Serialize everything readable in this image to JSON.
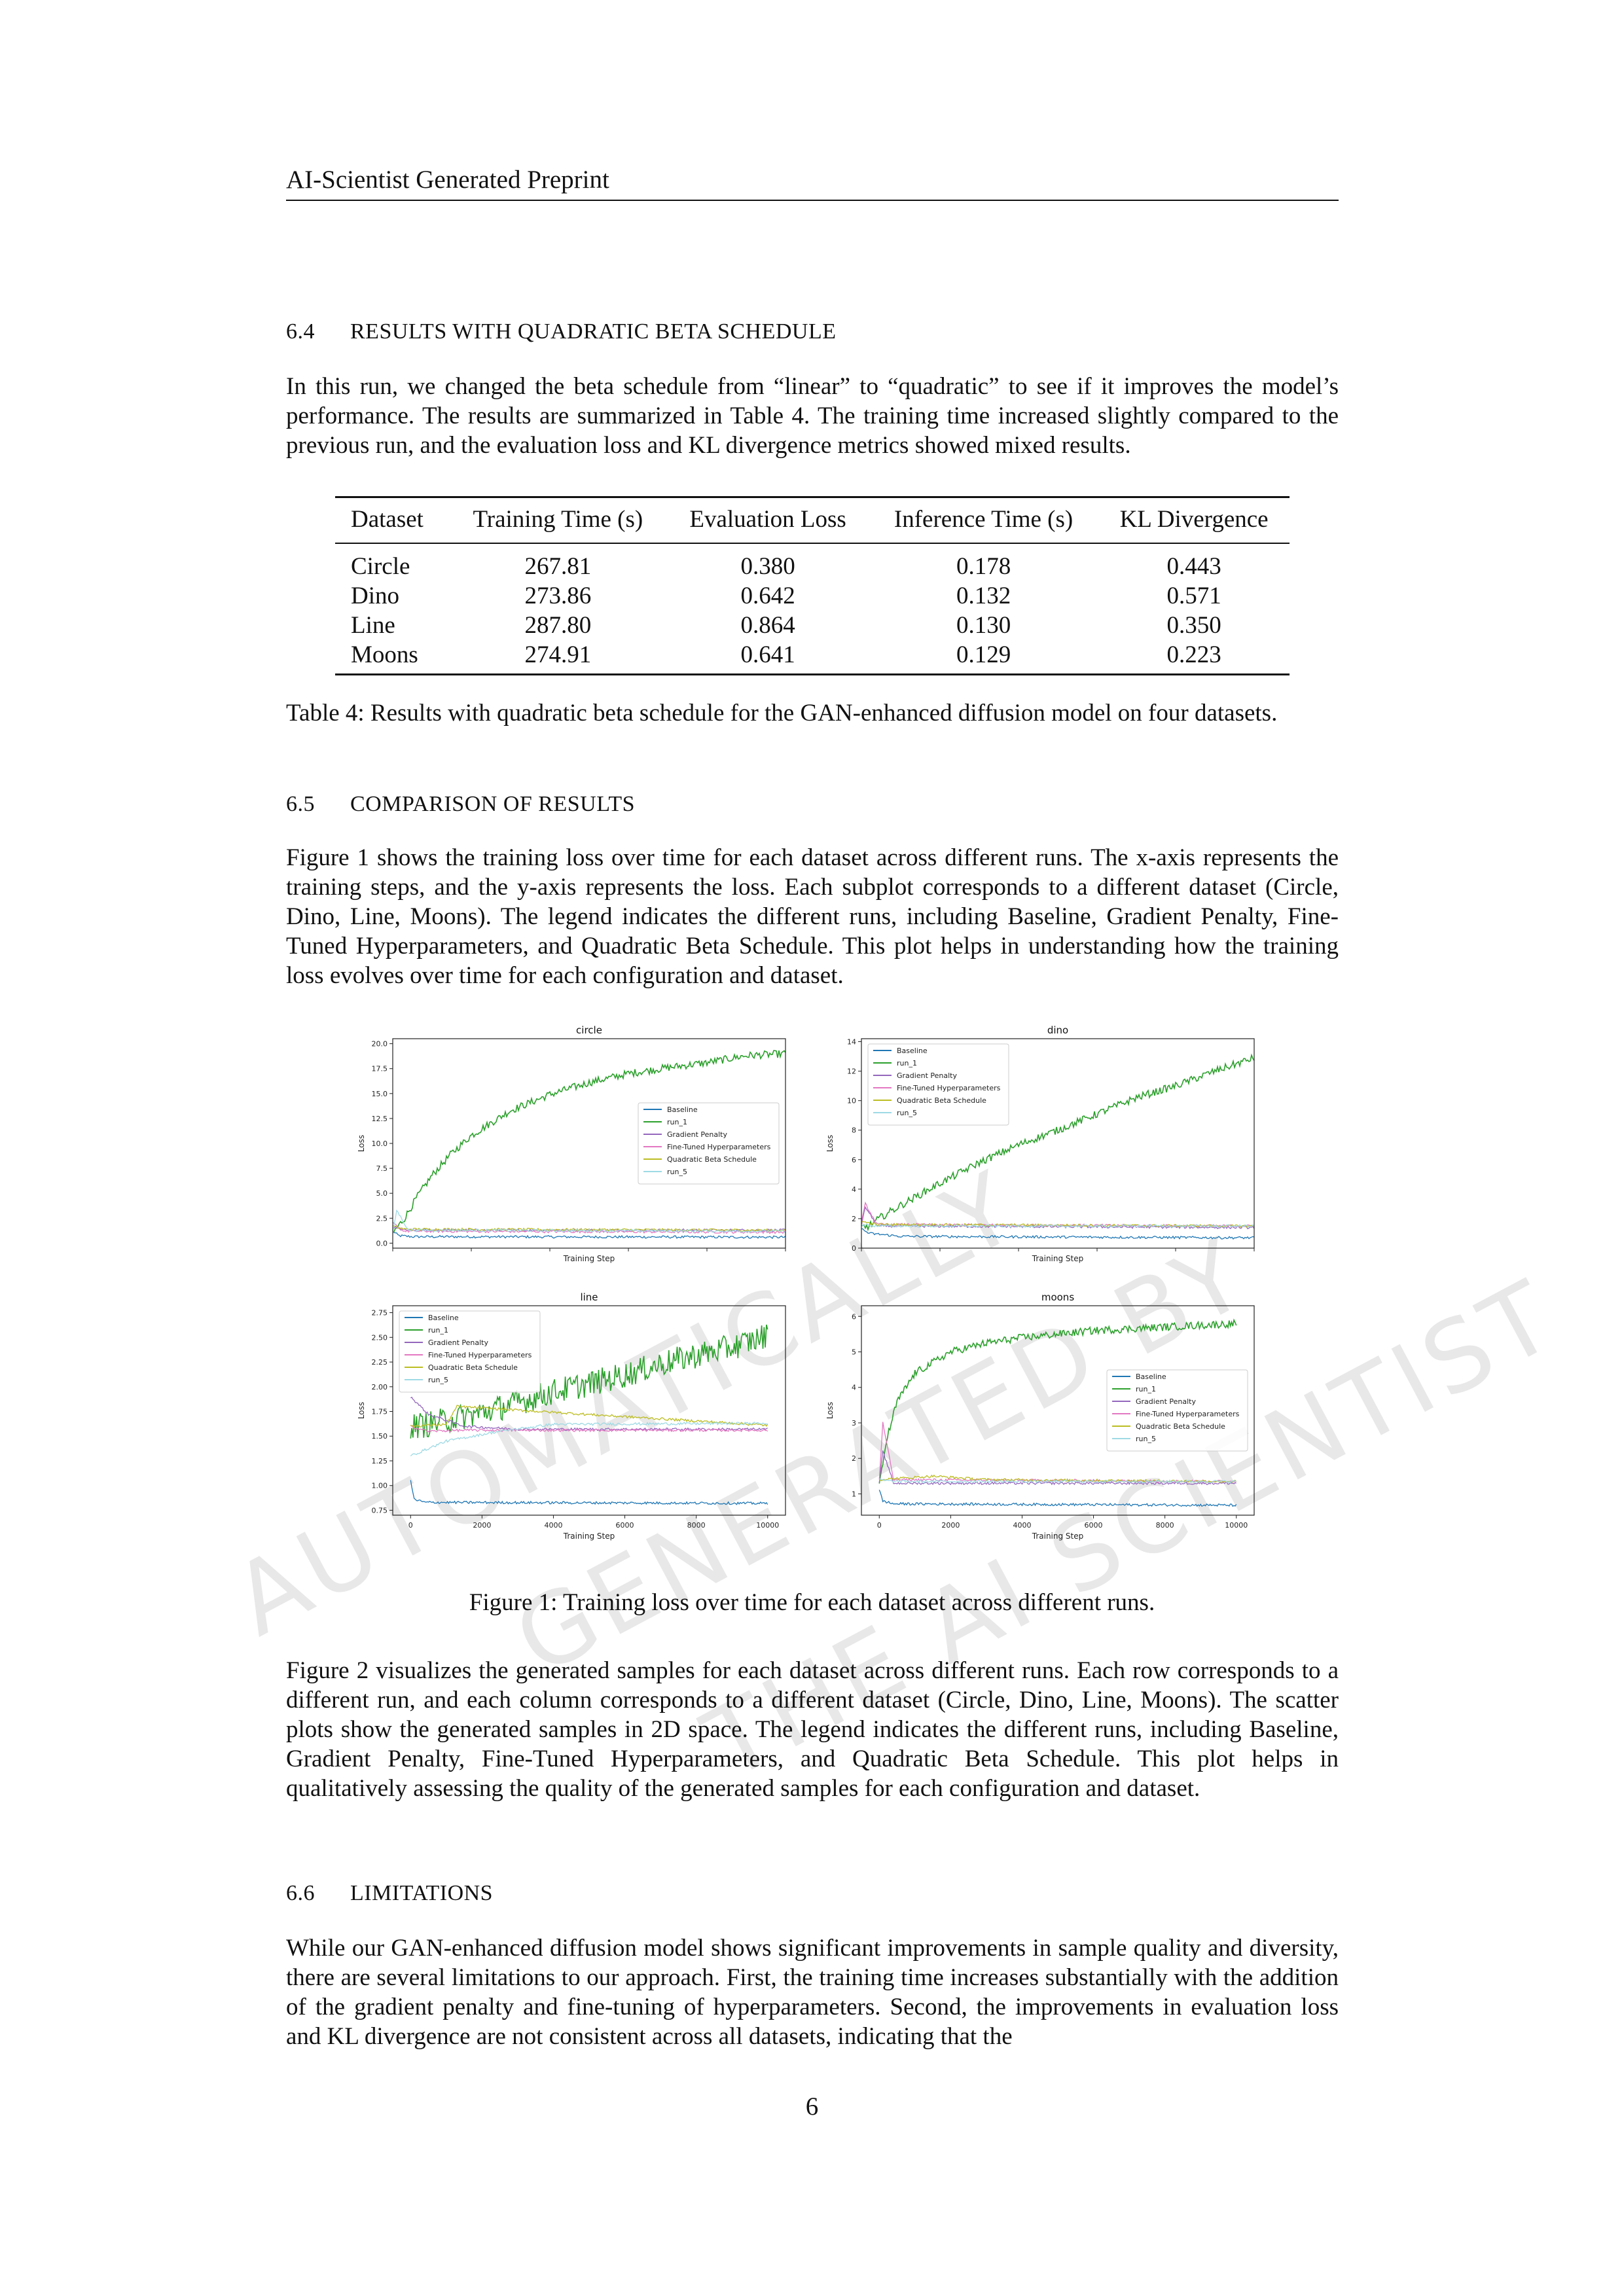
{
  "header": "AI-Scientist Generated Preprint",
  "sec_64": {
    "num": "6.4",
    "title": "RESULTS WITH QUADRATIC BETA SCHEDULE"
  },
  "para_64": "In this run, we changed the beta schedule from “linear” to “quadratic” to see if it improves the model’s performance. The results are summarized in Table 4. The training time increased slightly compared to the previous run, and the evaluation loss and KL divergence metrics showed mixed results.",
  "table": {
    "headers": [
      "Dataset",
      "Training Time (s)",
      "Evaluation Loss",
      "Inference Time (s)",
      "KL Divergence"
    ],
    "rows": [
      [
        "Circle",
        "267.81",
        "0.380",
        "0.178",
        "0.443"
      ],
      [
        "Dino",
        "273.86",
        "0.642",
        "0.132",
        "0.571"
      ],
      [
        "Line",
        "287.80",
        "0.864",
        "0.130",
        "0.350"
      ],
      [
        "Moons",
        "274.91",
        "0.641",
        "0.129",
        "0.223"
      ]
    ],
    "caption": "Table 4: Results with quadratic beta schedule for the GAN-enhanced diffusion model on four datasets."
  },
  "sec_65": {
    "num": "6.5",
    "title": "COMPARISON OF RESULTS"
  },
  "para_65": "Figure 1 shows the training loss over time for each dataset across different runs. The x-axis represents the training steps, and the y-axis represents the loss. Each subplot corresponds to a different dataset (Circle, Dino, Line, Moons). The legend indicates the different runs, including Baseline, Gradient Penalty, Fine-Tuned Hyperparameters, and Quadratic Beta Schedule. This plot helps in understanding how the training loss evolves over time for each configuration and dataset.",
  "figure_caption": "Figure 1: Training loss over time for each dataset across different runs.",
  "para_fig2": "Figure 2 visualizes the generated samples for each dataset across different runs. Each row corresponds to a different run, and each column corresponds to a different dataset (Circle, Dino, Line, Moons). The scatter plots show the generated samples in 2D space. The legend indicates the different runs, including Baseline, Gradient Penalty, Fine-Tuned Hyperparameters, and Quadratic Beta Schedule. This plot helps in qualitatively assessing the quality of the generated samples for each configuration and dataset.",
  "sec_66": {
    "num": "6.6",
    "title": "LIMITATIONS"
  },
  "para_66": "While our GAN-enhanced diffusion model shows significant improvements in sample quality and diversity, there are several limitations to our approach. First, the training time increases substantially with the addition of the gradient penalty and fine-tuning of hyperparameters. Second, the improvements in evaluation loss and KL divergence are not consistent across all datasets, indicating that the",
  "page_number": "6",
  "watermark": [
    "AUTOMATICALLY",
    "GENERATED BY",
    "THE AI SCIENTIST"
  ],
  "chart_data": [
    {
      "type": "line",
      "title": "circle",
      "xlabel": "Training Step",
      "ylabel": "Loss",
      "xlim": [
        0,
        10000
      ],
      "ylim": [
        -0.5,
        20.5
      ],
      "yticks": [
        0.0,
        2.5,
        5.0,
        7.5,
        10.0,
        12.5,
        15.0,
        17.5,
        20.0
      ],
      "ytick_labels": [
        "0.0",
        "2.5",
        "5.0",
        "7.5",
        "10.0",
        "12.5",
        "15.0",
        "17.5",
        "20.0"
      ],
      "xticks": [
        0,
        2000,
        4000,
        6000,
        8000,
        10000
      ],
      "show_xtick_labels": false,
      "legend_loc": "center-right",
      "series": [
        {
          "name": "Baseline",
          "color": "#1f77b4",
          "x": [
            0,
            150,
            500,
            10000
          ],
          "y": [
            1.2,
            0.75,
            0.65,
            0.6
          ]
        },
        {
          "name": "run_1",
          "color": "#2ca02c",
          "x": [
            0,
            300,
            600,
            1000,
            1500,
            2000,
            3000,
            4000,
            5000,
            6000,
            7000,
            8000,
            9000,
            10000
          ],
          "y": [
            1.0,
            2.5,
            4.5,
            6.8,
            9.0,
            10.8,
            13.3,
            14.9,
            16.1,
            17.0,
            17.6,
            18.1,
            18.8,
            19.0
          ]
        },
        {
          "name": "Gradient Penalty",
          "color": "#9467bd",
          "x": [
            0,
            300,
            10000
          ],
          "y": [
            1.6,
            1.3,
            1.3
          ]
        },
        {
          "name": "Fine-Tuned Hyperparameters",
          "color": "#e377c2",
          "x": [
            0,
            300,
            10000
          ],
          "y": [
            2.0,
            1.2,
            1.1
          ]
        },
        {
          "name": "Quadratic Beta Schedule",
          "color": "#bcbd22",
          "x": [
            0,
            300,
            10000
          ],
          "y": [
            1.7,
            1.4,
            1.3
          ]
        },
        {
          "name": "run_5",
          "color": "#9edae5",
          "x": [
            0,
            100,
            400,
            10000
          ],
          "y": [
            1.0,
            3.3,
            1.3,
            1.2
          ]
        }
      ]
    },
    {
      "type": "line",
      "title": "dino",
      "xlabel": "Training Step",
      "ylabel": "Loss",
      "xlim": [
        0,
        10000
      ],
      "ylim": [
        0,
        14.2
      ],
      "yticks": [
        0,
        2,
        4,
        6,
        8,
        10,
        12,
        14
      ],
      "ytick_labels": [
        "0",
        "2",
        "4",
        "6",
        "8",
        "10",
        "12",
        "14"
      ],
      "xticks": [
        0,
        2000,
        4000,
        6000,
        8000,
        10000
      ],
      "show_xtick_labels": false,
      "legend_loc": "upper-left",
      "series": [
        {
          "name": "Baseline",
          "color": "#1f77b4",
          "x": [
            0,
            200,
            1000,
            10000
          ],
          "y": [
            1.3,
            1.0,
            0.8,
            0.7
          ]
        },
        {
          "name": "run_1",
          "color": "#2ca02c",
          "x": [
            0,
            200,
            500,
            1000,
            2000,
            3000,
            4000,
            5000,
            6000,
            7000,
            8000,
            9000,
            10000
          ],
          "y": [
            1.4,
            1.5,
            2.1,
            2.9,
            4.4,
            5.8,
            7.0,
            8.0,
            9.1,
            10.2,
            11.0,
            12.0,
            12.9
          ]
        },
        {
          "name": "Gradient Penalty",
          "color": "#9467bd",
          "x": [
            0,
            100,
            400,
            10000
          ],
          "y": [
            1.5,
            2.8,
            1.5,
            1.4
          ]
        },
        {
          "name": "Fine-Tuned Hyperparameters",
          "color": "#e377c2",
          "x": [
            0,
            100,
            400,
            10000
          ],
          "y": [
            1.7,
            3.0,
            1.6,
            1.5
          ]
        },
        {
          "name": "Quadratic Beta Schedule",
          "color": "#bcbd22",
          "x": [
            0,
            400,
            10000
          ],
          "y": [
            1.8,
            1.6,
            1.5
          ]
        },
        {
          "name": "run_5",
          "color": "#9edae5",
          "x": [
            0,
            400,
            10000
          ],
          "y": [
            1.6,
            1.5,
            1.5
          ]
        }
      ]
    },
    {
      "type": "line",
      "title": "line",
      "xlabel": "Training Step",
      "ylabel": "Loss",
      "xlim": [
        -500,
        10500
      ],
      "ylim": [
        0.7,
        2.82
      ],
      "yticks": [
        0.75,
        1.0,
        1.25,
        1.5,
        1.75,
        2.0,
        2.25,
        2.5,
        2.75
      ],
      "ytick_labels": [
        "0.75",
        "1.00",
        "1.25",
        "1.50",
        "1.75",
        "2.00",
        "2.25",
        "2.50",
        "2.75"
      ],
      "xticks": [
        0,
        2000,
        4000,
        6000,
        8000,
        10000
      ],
      "xtick_labels": [
        "0",
        "2000",
        "4000",
        "6000",
        "8000",
        "10000"
      ],
      "show_xtick_labels": true,
      "legend_loc": "upper-left",
      "series": [
        {
          "name": "Baseline",
          "color": "#1f77b4",
          "x": [
            0,
            100,
            400,
            10000
          ],
          "y": [
            1.05,
            0.86,
            0.83,
            0.82
          ]
        },
        {
          "name": "run_1",
          "color": "#2ca02c",
          "x": [
            0,
            500,
            1000,
            2000,
            3000,
            4000,
            5000,
            6000,
            7000,
            8000,
            9000,
            10000
          ],
          "y": [
            1.6,
            1.62,
            1.66,
            1.74,
            1.84,
            1.95,
            2.03,
            2.12,
            2.23,
            2.32,
            2.4,
            2.52
          ]
        },
        {
          "name": "Gradient Penalty",
          "color": "#9467bd",
          "x": [
            0,
            500,
            1500,
            3000,
            10000
          ],
          "y": [
            1.9,
            1.72,
            1.6,
            1.57,
            1.57
          ]
        },
        {
          "name": "Fine-Tuned Hyperparameters",
          "color": "#e377c2",
          "x": [
            0,
            500,
            1500,
            10000
          ],
          "y": [
            1.6,
            1.55,
            1.56,
            1.56
          ]
        },
        {
          "name": "Quadratic Beta Schedule",
          "color": "#bcbd22",
          "x": [
            0,
            1000,
            1300,
            10000
          ],
          "y": [
            1.6,
            1.62,
            1.8,
            1.61
          ]
        },
        {
          "name": "run_5",
          "color": "#9edae5",
          "x": [
            0,
            1000,
            2500,
            4000,
            10000
          ],
          "y": [
            1.3,
            1.45,
            1.55,
            1.62,
            1.63
          ]
        }
      ]
    },
    {
      "type": "line",
      "title": "moons",
      "xlabel": "Training Step",
      "ylabel": "Loss",
      "xlim": [
        -500,
        10500
      ],
      "ylim": [
        0.4,
        6.3
      ],
      "yticks": [
        1,
        2,
        3,
        4,
        5,
        6
      ],
      "ytick_labels": [
        "1",
        "2",
        "3",
        "4",
        "5",
        "6"
      ],
      "xticks": [
        0,
        2000,
        4000,
        6000,
        8000,
        10000
      ],
      "xtick_labels": [
        "0",
        "2000",
        "4000",
        "6000",
        "8000",
        "10000"
      ],
      "show_xtick_labels": true,
      "legend_loc": "center-right",
      "series": [
        {
          "name": "Baseline",
          "color": "#1f77b4",
          "x": [
            0,
            100,
            400,
            10000
          ],
          "y": [
            1.1,
            0.8,
            0.72,
            0.68
          ]
        },
        {
          "name": "run_1",
          "color": "#2ca02c",
          "x": [
            0,
            200,
            500,
            1000,
            2000,
            3000,
            4000,
            5000,
            6000,
            7000,
            8000,
            9000,
            10000
          ],
          "y": [
            1.2,
            2.5,
            3.6,
            4.4,
            5.0,
            5.25,
            5.4,
            5.5,
            5.6,
            5.65,
            5.7,
            5.75,
            5.8
          ]
        },
        {
          "name": "Gradient Penalty",
          "color": "#9467bd",
          "x": [
            0,
            100,
            400,
            10000
          ],
          "y": [
            1.3,
            2.2,
            1.3,
            1.3
          ]
        },
        {
          "name": "Fine-Tuned Hyperparameters",
          "color": "#e377c2",
          "x": [
            0,
            100,
            400,
            10000
          ],
          "y": [
            1.4,
            3.0,
            1.4,
            1.35
          ]
        },
        {
          "name": "Quadratic Beta Schedule",
          "color": "#bcbd22",
          "x": [
            0,
            1500,
            3000,
            10000
          ],
          "y": [
            1.4,
            1.5,
            1.4,
            1.35
          ]
        },
        {
          "name": "run_5",
          "color": "#9edae5",
          "x": [
            0,
            400,
            10000
          ],
          "y": [
            1.4,
            1.35,
            1.35
          ]
        }
      ]
    }
  ]
}
